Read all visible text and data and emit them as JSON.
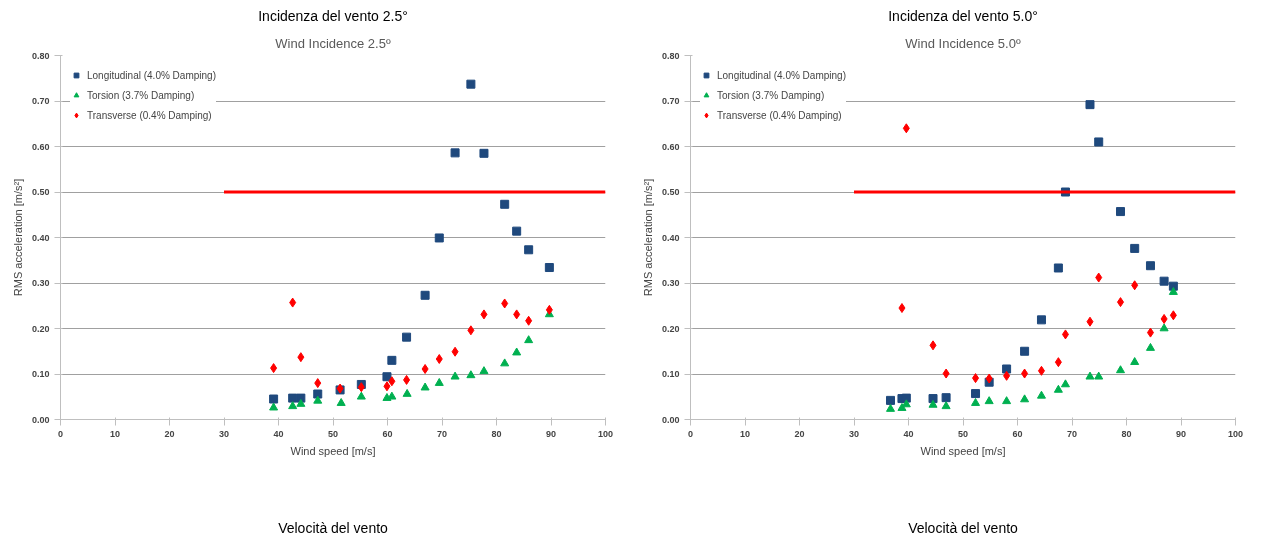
{
  "chart_data": [
    {
      "type": "scatter",
      "title": "Wind Incidence 2.5º",
      "xlabel": "Wind speed [m/s]",
      "ylabel": "RMS acceleration [m/s²]",
      "annotations": [
        "Incidenza del vento 2.5°",
        "Velocità del vento"
      ],
      "xlim": [
        0,
        100
      ],
      "xticks": [
        0,
        10,
        20,
        30,
        40,
        50,
        60,
        70,
        80,
        90,
        100
      ],
      "ylim": [
        0,
        0.8
      ],
      "yticks": [
        {
          "value": 0,
          "label": "0.00"
        },
        {
          "value": 0.1,
          "label": "0.10"
        },
        {
          "value": 0.2,
          "label": "0.20"
        },
        {
          "value": 0.3,
          "label": "0.30"
        },
        {
          "value": 0.4,
          "label": "0.40"
        },
        {
          "value": 0.5,
          "label": "0.50"
        },
        {
          "value": 0.6,
          "label": "0.60"
        },
        {
          "value": 0.7,
          "label": "0.70"
        },
        {
          "value": 0.8,
          "label": "0.80"
        }
      ],
      "grid": "y",
      "legend": "top left",
      "series": [
        {
          "name": "Longitudinal (4.0% Damping)",
          "color": "#1f497d",
          "marker": "square",
          "x": [
            39.1,
            42.6,
            44.1,
            47.2,
            51.3,
            55.2,
            59.9,
            60.8,
            63.5,
            66.9,
            69.5,
            72.4,
            75.3,
            77.7,
            81.5,
            83.7,
            85.9,
            89.7
          ],
          "values": [
            0.045,
            0.047,
            0.047,
            0.056,
            0.065,
            0.077,
            0.094,
            0.13,
            0.181,
            0.273,
            0.399,
            0.586,
            0.737,
            0.585,
            0.473,
            0.414,
            0.373,
            0.334
          ]
        },
        {
          "name": "Torsion (3.7% Damping)",
          "color": "#00b050",
          "marker": "triangle",
          "x": [
            39.1,
            42.6,
            44.1,
            47.2,
            51.5,
            55.2,
            59.9,
            60.8,
            63.6,
            66.9,
            69.5,
            72.4,
            75.3,
            77.7,
            81.5,
            83.7,
            85.9,
            89.7
          ],
          "values": [
            0.026,
            0.029,
            0.034,
            0.041,
            0.036,
            0.05,
            0.047,
            0.05,
            0.056,
            0.07,
            0.08,
            0.094,
            0.097,
            0.106,
            0.123,
            0.147,
            0.174,
            0.231
          ]
        },
        {
          "name": "Transverse (0.4% Damping)",
          "color": "#ff0000",
          "marker": "diamond",
          "x": [
            39.1,
            42.6,
            44.1,
            47.2,
            51.3,
            55.2,
            59.9,
            60.8,
            63.5,
            66.9,
            69.5,
            72.4,
            75.3,
            77.7,
            81.5,
            83.7,
            85.9,
            89.7
          ],
          "values": [
            0.113,
            0.257,
            0.137,
            0.08,
            0.068,
            0.071,
            0.073,
            0.084,
            0.087,
            0.111,
            0.133,
            0.149,
            0.196,
            0.231,
            0.255,
            0.231,
            0.217,
            0.241
          ]
        },
        {
          "type": "line",
          "color": "#ff0000",
          "x": [
            30,
            100
          ],
          "values": [
            0.5,
            0.5
          ]
        }
      ]
    },
    {
      "type": "scatter",
      "title": "Wind Incidence 5.0º",
      "xlabel": "Wind speed [m/s]",
      "ylabel": "RMS acceleration [m/s²]",
      "annotations": [
        "Incidenza del vento 5.0°",
        "Velocità del vento"
      ],
      "xlim": [
        0,
        100
      ],
      "xticks": [
        0,
        10,
        20,
        30,
        40,
        50,
        60,
        70,
        80,
        90,
        100
      ],
      "ylim": [
        0,
        0.8
      ],
      "yticks": [
        {
          "value": 0,
          "label": "0.00"
        },
        {
          "value": 0.1,
          "label": "0.10"
        },
        {
          "value": 0.2,
          "label": "0.20"
        },
        {
          "value": 0.3,
          "label": "0.30"
        },
        {
          "value": 0.4,
          "label": "0.40"
        },
        {
          "value": 0.5,
          "label": "0.50"
        },
        {
          "value": 0.6,
          "label": "0.60"
        },
        {
          "value": 0.7,
          "label": "0.70"
        },
        {
          "value": 0.8,
          "label": "0.80"
        }
      ],
      "grid": "y",
      "legend": "top left",
      "series": [
        {
          "name": "Longitudinal (4.0% Damping)",
          "color": "#1f497d",
          "marker": "square",
          "x": [
            36.7,
            38.8,
            39.6,
            44.5,
            46.9,
            52.3,
            54.8,
            58.0,
            61.3,
            64.4,
            67.5,
            68.8,
            73.3,
            74.9,
            78.9,
            81.5,
            84.4,
            86.9,
            88.6
          ],
          "values": [
            0.042,
            0.046,
            0.047,
            0.046,
            0.048,
            0.057,
            0.082,
            0.111,
            0.15,
            0.219,
            0.333,
            0.5,
            0.692,
            0.61,
            0.457,
            0.376,
            0.338,
            0.304,
            0.293
          ]
        },
        {
          "name": "Torsion (3.7% Damping)",
          "color": "#00b050",
          "marker": "triangle",
          "x": [
            36.7,
            38.8,
            39.6,
            44.5,
            46.9,
            52.3,
            54.8,
            58.0,
            61.3,
            64.4,
            67.5,
            68.8,
            73.3,
            74.9,
            78.9,
            81.5,
            84.4,
            86.9,
            88.6
          ],
          "values": [
            0.023,
            0.025,
            0.033,
            0.032,
            0.029,
            0.036,
            0.04,
            0.04,
            0.044,
            0.052,
            0.065,
            0.077,
            0.094,
            0.094,
            0.108,
            0.126,
            0.157,
            0.2,
            0.28
          ]
        },
        {
          "name": "Transverse (0.4% Damping)",
          "color": "#ff0000",
          "marker": "diamond",
          "x": [
            38.8,
            39.6,
            44.5,
            46.9,
            52.3,
            54.8,
            58.0,
            61.3,
            64.4,
            67.5,
            68.8,
            73.3,
            74.9,
            78.9,
            81.5,
            84.4,
            86.9,
            88.6
          ],
          "values": [
            0.245,
            0.64,
            0.163,
            0.101,
            0.091,
            0.09,
            0.096,
            0.101,
            0.107,
            0.126,
            0.187,
            0.215,
            0.312,
            0.258,
            0.295,
            0.191,
            0.221,
            0.229
          ]
        },
        {
          "type": "line",
          "color": "#ff0000",
          "x": [
            30,
            100
          ],
          "values": [
            0.5,
            0.5
          ]
        }
      ]
    }
  ]
}
